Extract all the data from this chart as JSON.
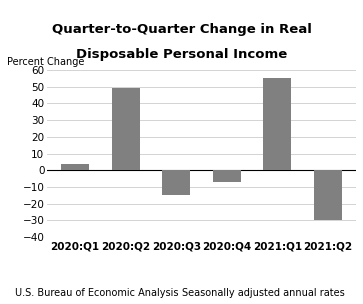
{
  "title_line1": "Quarter-to-Quarter Change in Real",
  "title_line2": "Disposable Personal Income",
  "ylabel": "Percent Change",
  "categories": [
    "2020:Q1",
    "2020:Q2",
    "2020:Q3",
    "2020:Q4",
    "2021:Q1",
    "2021:Q2"
  ],
  "values": [
    4.0,
    49.0,
    -15.0,
    -7.0,
    55.0,
    -30.0
  ],
  "bar_color": "#808080",
  "ylim": [
    -40,
    60
  ],
  "yticks": [
    -40,
    -30,
    -20,
    -10,
    0,
    10,
    20,
    30,
    40,
    50,
    60
  ],
  "footer_left": "U.S. Bureau of Economic Analysis",
  "footer_right": "Seasonally adjusted annual rates",
  "background_color": "#ffffff",
  "grid_color": "#cccccc",
  "title_fontsize": 9.5,
  "ylabel_fontsize": 7,
  "tick_fontsize": 7.5,
  "xtick_fontsize": 7.5,
  "footer_fontsize": 7
}
